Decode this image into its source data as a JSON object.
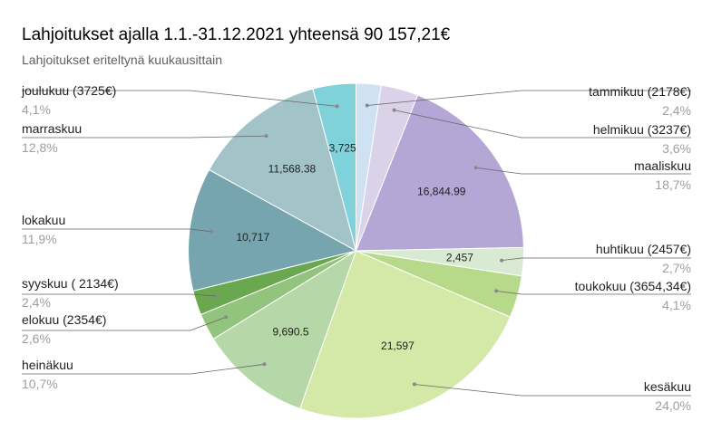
{
  "chart_data": {
    "type": "pie",
    "title": "Lahjoitukset ajalla 1.1.-31.12.2021 yhteensä 90 157,21€",
    "subtitle": "Lahjoitukset eriteltynä kuukausittain",
    "slices": [
      {
        "name": "tammikuu (2178€)",
        "value": 2178,
        "value_label": "",
        "percent_label": "2,4%",
        "color": "#cfe2f3"
      },
      {
        "name": "helmikuu (3237€)",
        "value": 3237,
        "value_label": "",
        "percent_label": "3,6%",
        "color": "#d9d2e9"
      },
      {
        "name": "maaliskuu",
        "value": 16844.99,
        "value_label": "16,844.99",
        "percent_label": "18,7%",
        "color": "#b4a7d6"
      },
      {
        "name": "huhtikuu (2457€)",
        "value": 2457,
        "value_label": "2,457",
        "percent_label": "2,7%",
        "color": "#d9ead3"
      },
      {
        "name": "toukokuu (3654,34€)",
        "value": 3654.34,
        "value_label": "",
        "percent_label": "4,1%",
        "color": "#b6d98a"
      },
      {
        "name": "kesäkuu",
        "value": 21597,
        "value_label": "21,597",
        "percent_label": "24,0%",
        "color": "#d4e8a8"
      },
      {
        "name": "heinäkuu",
        "value": 9690.5,
        "value_label": "9,690.5",
        "percent_label": "10,7%",
        "color": "#b6d7a8"
      },
      {
        "name": "elokuu (2354€)",
        "value": 2354,
        "value_label": "",
        "percent_label": "2,6%",
        "color": "#93c47d"
      },
      {
        "name": "syyskuu ( 2134€)",
        "value": 2134,
        "value_label": "",
        "percent_label": "2,4%",
        "color": "#6aa84f"
      },
      {
        "name": "lokakuu",
        "value": 10717,
        "value_label": "10,717",
        "percent_label": "11,9%",
        "color": "#76a5af"
      },
      {
        "name": "marraskuu",
        "value": 11568.38,
        "value_label": "11,568.38",
        "percent_label": "12,8%",
        "color": "#a2c4c9"
      },
      {
        "name": "joulukuu (3725€)",
        "value": 3725,
        "value_label": "3,725",
        "percent_label": "4,1%",
        "color": "#7fd2d9"
      }
    ]
  }
}
